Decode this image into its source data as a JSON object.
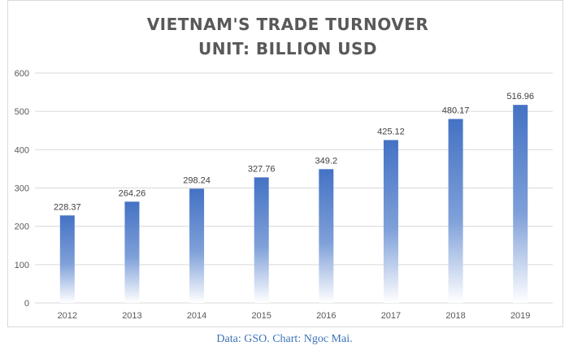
{
  "chart_data": {
    "type": "bar",
    "title_lines": [
      "VIETNAM'S TRADE TURNOVER",
      "UNIT: BILLION USD"
    ],
    "categories": [
      "2012",
      "2013",
      "2014",
      "2015",
      "2016",
      "2017",
      "2018",
      "2019"
    ],
    "values": [
      228.37,
      264.26,
      298.24,
      327.76,
      349.2,
      425.12,
      480.17,
      516.96
    ],
    "data_labels": [
      "228.37",
      "264.26",
      "298.24",
      "327.76",
      "349.2",
      "425.12",
      "480.17",
      "516.96"
    ],
    "ylim": [
      0,
      600
    ],
    "yticks": [
      0,
      100,
      200,
      300,
      400,
      500,
      600
    ],
    "grid": true,
    "bar_color_top": "#4472c4",
    "bar_color_bottom": "#ffffff"
  },
  "caption": "Data: GSO. Chart: Ngoc Mai."
}
